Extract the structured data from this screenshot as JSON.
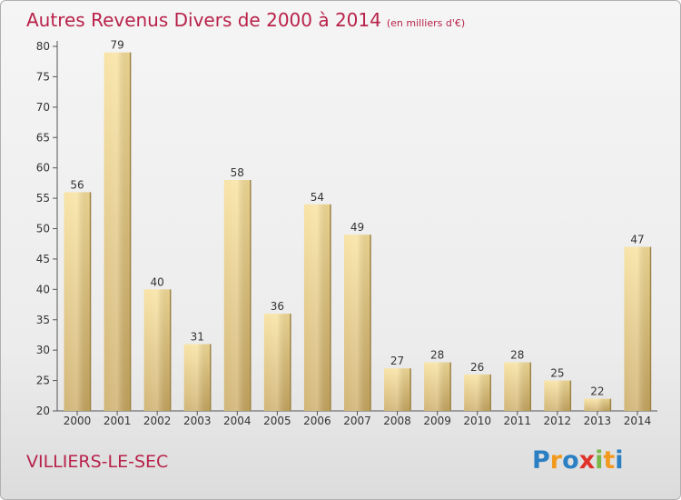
{
  "header": {
    "title": "Autres Revenus Divers de 2000 à 2014",
    "unit": "(en milliers d'€)"
  },
  "footer": {
    "commune": "VILLIERS-LE-SEC"
  },
  "logo": {
    "letters": [
      "P",
      "r",
      "o",
      "x",
      "i",
      "t",
      "i"
    ],
    "colors": [
      "#2b7fc3",
      "#f29a1f",
      "#2b7fc3",
      "#e0322b",
      "#7ab648",
      "#f29a1f",
      "#2b7fc3"
    ]
  },
  "chart_data": {
    "type": "bar",
    "title": "Autres Revenus Divers de 2000 à 2014",
    "subtitle": "(en milliers d'€)",
    "categories": [
      "2000",
      "2001",
      "2002",
      "2003",
      "2004",
      "2005",
      "2006",
      "2007",
      "2008",
      "2009",
      "2010",
      "2011",
      "2012",
      "2013",
      "2014"
    ],
    "values": [
      56,
      79,
      40,
      31,
      58,
      36,
      54,
      49,
      27,
      28,
      26,
      28,
      25,
      22,
      47
    ],
    "ylim": [
      20,
      80
    ],
    "yticks": [
      20,
      25,
      30,
      35,
      40,
      45,
      50,
      55,
      60,
      65,
      70,
      75,
      80
    ],
    "grid": false,
    "bar_color": "#e3c77d",
    "text_color": "#b8224a"
  }
}
